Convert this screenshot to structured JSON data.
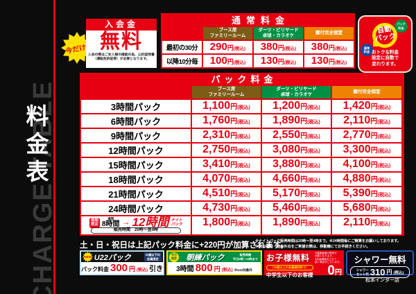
{
  "store": "松本インター店",
  "units": {
    "yen": "円",
    "tax": "(税込)"
  },
  "colors": {
    "accent_red": "#e60012",
    "booth_brown": "#7d5c16",
    "darts_green": "#009144",
    "private_orange": "#ef8200",
    "highlight_yellow": "#ffe100"
  },
  "sidebar": {
    "title_jp": "料金表",
    "title_en": "CHARGE TABLE"
  },
  "admission": {
    "badge": "今だけ!",
    "title": "入会金",
    "value": "無料",
    "note": "入会の際はご本人様の確認の為、公的証明書（運転免許証等）が必要となります。"
  },
  "columns": {
    "col1": [
      "ブース席",
      "ファミリールーム"
    ],
    "col2": [
      "ダーツ・ビリヤード",
      "卓球・カラオケ"
    ],
    "col3": [
      "鍵付完全個室"
    ]
  },
  "normal": {
    "title": "通常料金",
    "rows": [
      {
        "label": "最初の30分",
        "prices": [
          "290",
          "380",
          "380"
        ]
      },
      {
        "label": "以降10分毎",
        "prices": [
          "100",
          "130",
          "130"
        ]
      }
    ]
  },
  "auto_badge": {
    "main": [
      "自動",
      "パック"
    ],
    "left_bubble": [
      "通常",
      "料金"
    ],
    "right_bubble": [
      "パック",
      "料金"
    ],
    "note": [
      "おトクな料金",
      "設定に自動で",
      "変わります。"
    ]
  },
  "pack": {
    "title": "パック料金",
    "rows": [
      {
        "label": "3時間パック",
        "prices": [
          "1,100",
          "1,200",
          "1,420"
        ]
      },
      {
        "label": "6時間パック",
        "prices": [
          "1,760",
          "1,890",
          "2,110"
        ]
      },
      {
        "label": "9時間パック",
        "prices": [
          "2,310",
          "2,550",
          "2,770"
        ]
      },
      {
        "label": "12時間パック",
        "prices": [
          "2,750",
          "3,080",
          "3,300"
        ]
      },
      {
        "label": "15時間パック",
        "prices": [
          "3,410",
          "3,880",
          "4,100"
        ]
      },
      {
        "label": "18時間パック",
        "prices": [
          "4,070",
          "4,660",
          "4,880"
        ]
      },
      {
        "label": "21時間パック",
        "prices": [
          "4,510",
          "5,170",
          "5,390"
        ]
      },
      {
        "label": "24時間パック",
        "prices": [
          "4,730",
          "5,460",
          "5,680"
        ]
      }
    ],
    "night": {
      "badge": [
        "期間",
        "限定"
      ],
      "before_small": "通常",
      "before": "8時間",
      "before_sub": "ナイトパック",
      "arrow": "→",
      "after": "12時間",
      "after_sub": [
        "ナイト",
        "パック"
      ],
      "time": "販売時間　20時〜翌4時",
      "prices": [
        "1,800",
        "1,890",
        "2,110"
      ]
    }
  },
  "notes": {
    "weekend": "土・日・祝日は上記パック料金に+220円が加算されます。",
    "fine1": "※ナイトパック販売時間は20時〜翌4時まで。※24時間毎にご精算をお願いしております。",
    "fine2": "※席の移動・途中外出をご希望の際は、移動機にてお手続きください。"
  },
  "offers": {
    "u22": {
      "badge": "NEW",
      "title": "U22パック",
      "cond": [
        "22歳以下の",
        "会員限定"
      ],
      "body_label": "パック料金",
      "price": "300",
      "suffix": "引き"
    },
    "morning": {
      "badge": [
        "平日",
        "限定"
      ],
      "title": "朝練パック",
      "cond": [
        "販売時間",
        "平日5時〜11時まで"
      ],
      "body_label": "3時間",
      "price": "800",
      "note": "※U22対象外"
    },
    "kids": {
      "title": "お子様無料",
      "fine": [
        "※保護者様の同伴が",
        "必要となります。",
        "※年齢確認をさせて",
        "頂く場合がございます。"
      ],
      "pill": "（20歳以上の会員様同伴で）",
      "body": "中学生以下のお客様",
      "price": "0"
    },
    "shower": {
      "title": "シャワー無料",
      "label": [
        "シャワー",
        "セット代"
      ],
      "price": "310"
    }
  }
}
